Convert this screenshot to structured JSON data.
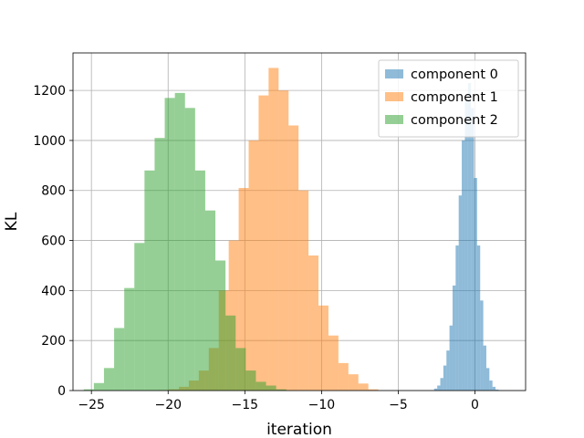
{
  "chart_data": {
    "type": "histogram",
    "xlabel": "iteration",
    "ylabel": "KL",
    "xlim": [
      -26.2,
      3.3
    ],
    "ylim": [
      0,
      1350
    ],
    "xticks": [
      -25,
      -20,
      -15,
      -10,
      -5,
      0
    ],
    "yticks": [
      0,
      200,
      400,
      600,
      800,
      1000,
      1200
    ],
    "grid": true,
    "legend_position": "top-right",
    "series": [
      {
        "name": "component 0",
        "color": "#1f77b4",
        "opacity": 0.5,
        "bin_start": -2.66,
        "bin_width": 0.2,
        "values": [
          8,
          20,
          50,
          100,
          160,
          260,
          420,
          580,
          780,
          1000,
          1160,
          1230,
          1130,
          850,
          580,
          360,
          180,
          90,
          40,
          15,
          4,
          1
        ]
      },
      {
        "name": "component 1",
        "color": "#ff7f0e",
        "opacity": 0.5,
        "bin_start": -20.6,
        "bin_width": 0.65,
        "values": [
          2,
          5,
          15,
          40,
          80,
          170,
          400,
          600,
          810,
          1000,
          1180,
          1290,
          1200,
          1060,
          800,
          540,
          340,
          220,
          110,
          65,
          28,
          5
        ]
      },
      {
        "name": "component 2",
        "color": "#2ca02c",
        "opacity": 0.5,
        "bin_start": -25.5,
        "bin_width": 0.66,
        "values": [
          5,
          30,
          90,
          250,
          410,
          590,
          880,
          1010,
          1170,
          1190,
          1130,
          880,
          720,
          520,
          300,
          170,
          80,
          35,
          20,
          5
        ]
      }
    ]
  }
}
